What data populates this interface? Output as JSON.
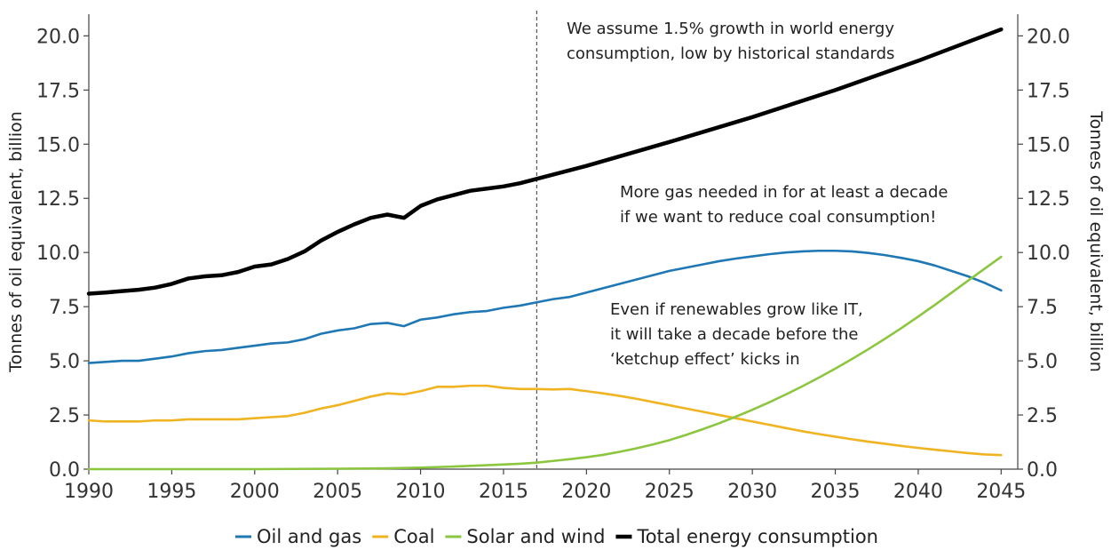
{
  "chart_data": {
    "type": "line",
    "xlabel": "",
    "ylabel_left": "Tonnes of oil equivalent, billion",
    "ylabel_right": "Tonnes of oil equivalent, billion",
    "xlim": [
      1990,
      2046
    ],
    "ylim": [
      0,
      21
    ],
    "x_ticks": [
      1990,
      1995,
      2000,
      2005,
      2010,
      2015,
      2020,
      2025,
      2030,
      2035,
      2040,
      2045
    ],
    "y_ticks": [
      0,
      2.5,
      5,
      7.5,
      10,
      12.5,
      15,
      17.5,
      20
    ],
    "y_tick_labels": [
      "0.0",
      "2.5",
      "5.0",
      "7.5",
      "10.0",
      "12.5",
      "15.0",
      "17.5",
      "20.0"
    ],
    "grid": false,
    "legend_position": "bottom",
    "vline": {
      "x": 2017,
      "style": "dashed"
    },
    "series": [
      {
        "name": "Oil and gas",
        "color": "#1f78b4",
        "x": [
          1990,
          1991,
          1992,
          1993,
          1994,
          1995,
          1996,
          1997,
          1998,
          1999,
          2000,
          2001,
          2002,
          2003,
          2004,
          2005,
          2006,
          2007,
          2008,
          2009,
          2010,
          2011,
          2012,
          2013,
          2014,
          2015,
          2016,
          2017,
          2018,
          2019,
          2020,
          2021,
          2022,
          2023,
          2024,
          2025,
          2026,
          2027,
          2028,
          2029,
          2030,
          2031,
          2032,
          2033,
          2034,
          2035,
          2036,
          2037,
          2038,
          2039,
          2040,
          2041,
          2042,
          2043,
          2044,
          2045
        ],
        "values": [
          4.9,
          4.95,
          5.0,
          5.0,
          5.1,
          5.2,
          5.35,
          5.45,
          5.5,
          5.6,
          5.7,
          5.8,
          5.85,
          6.0,
          6.25,
          6.4,
          6.5,
          6.7,
          6.75,
          6.6,
          6.9,
          7.0,
          7.15,
          7.25,
          7.3,
          7.45,
          7.55,
          7.7,
          7.85,
          7.95,
          8.15,
          8.35,
          8.55,
          8.75,
          8.95,
          9.15,
          9.3,
          9.45,
          9.6,
          9.72,
          9.82,
          9.92,
          10.0,
          10.05,
          10.08,
          10.08,
          10.05,
          9.98,
          9.88,
          9.75,
          9.6,
          9.4,
          9.15,
          8.9,
          8.6,
          8.25
        ]
      },
      {
        "name": "Coal",
        "color": "#f0b322",
        "x": [
          1990,
          1991,
          1992,
          1993,
          1994,
          1995,
          1996,
          1997,
          1998,
          1999,
          2000,
          2001,
          2002,
          2003,
          2004,
          2005,
          2006,
          2007,
          2008,
          2009,
          2010,
          2011,
          2012,
          2013,
          2014,
          2015,
          2016,
          2017,
          2018,
          2019,
          2020,
          2021,
          2022,
          2023,
          2024,
          2025,
          2026,
          2027,
          2028,
          2029,
          2030,
          2031,
          2032,
          2033,
          2034,
          2035,
          2036,
          2037,
          2038,
          2039,
          2040,
          2041,
          2042,
          2043,
          2044,
          2045
        ],
        "values": [
          2.25,
          2.2,
          2.2,
          2.2,
          2.25,
          2.25,
          2.3,
          2.3,
          2.3,
          2.3,
          2.35,
          2.4,
          2.45,
          2.6,
          2.8,
          2.95,
          3.15,
          3.35,
          3.5,
          3.45,
          3.6,
          3.8,
          3.8,
          3.85,
          3.85,
          3.75,
          3.7,
          3.7,
          3.68,
          3.7,
          3.6,
          3.5,
          3.38,
          3.25,
          3.1,
          2.95,
          2.8,
          2.65,
          2.5,
          2.35,
          2.2,
          2.05,
          1.9,
          1.75,
          1.62,
          1.5,
          1.38,
          1.27,
          1.17,
          1.07,
          0.98,
          0.9,
          0.82,
          0.74,
          0.68,
          0.65
        ]
      },
      {
        "name": "Solar and wind",
        "color": "#8cc63f",
        "x": [
          1990,
          1995,
          2000,
          2005,
          2008,
          2010,
          2012,
          2014,
          2016,
          2017,
          2018,
          2019,
          2020,
          2021,
          2022,
          2023,
          2024,
          2025,
          2026,
          2027,
          2028,
          2029,
          2030,
          2031,
          2032,
          2033,
          2034,
          2035,
          2036,
          2037,
          2038,
          2039,
          2040,
          2041,
          2042,
          2043,
          2044,
          2045
        ],
        "values": [
          0.0,
          0.0,
          0.0,
          0.02,
          0.04,
          0.07,
          0.12,
          0.18,
          0.25,
          0.3,
          0.38,
          0.46,
          0.55,
          0.66,
          0.8,
          0.96,
          1.14,
          1.34,
          1.58,
          1.84,
          2.12,
          2.42,
          2.74,
          3.08,
          3.44,
          3.82,
          4.22,
          4.64,
          5.08,
          5.54,
          6.02,
          6.52,
          7.04,
          7.58,
          8.14,
          8.7,
          9.25,
          9.8
        ]
      },
      {
        "name": "Total energy consumption",
        "color": "#000000",
        "x": [
          1990,
          1991,
          1992,
          1993,
          1994,
          1995,
          1996,
          1997,
          1998,
          1999,
          2000,
          2001,
          2002,
          2003,
          2004,
          2005,
          2006,
          2007,
          2008,
          2009,
          2010,
          2011,
          2012,
          2013,
          2014,
          2015,
          2016,
          2017,
          2020,
          2025,
          2030,
          2035,
          2040,
          2045
        ],
        "values": [
          8.1,
          8.15,
          8.22,
          8.28,
          8.38,
          8.55,
          8.8,
          8.9,
          8.95,
          9.1,
          9.35,
          9.45,
          9.7,
          10.05,
          10.55,
          10.95,
          11.3,
          11.6,
          11.75,
          11.6,
          12.15,
          12.45,
          12.65,
          12.85,
          12.95,
          13.05,
          13.2,
          13.4,
          14.0,
          15.1,
          16.25,
          17.5,
          18.85,
          20.3
        ]
      }
    ],
    "annotations": [
      {
        "lines": [
          "We assume 1.5% growth in world energy",
          "consumption, low by historical standards"
        ]
      },
      {
        "lines": [
          "More gas needed in for at least a decade",
          "if  we want to reduce coal consumption!"
        ]
      },
      {
        "lines": [
          "Even if renewables grow like IT,",
          "it will take a decade before the",
          "‘ketchup effect’ kicks in"
        ]
      }
    ]
  }
}
